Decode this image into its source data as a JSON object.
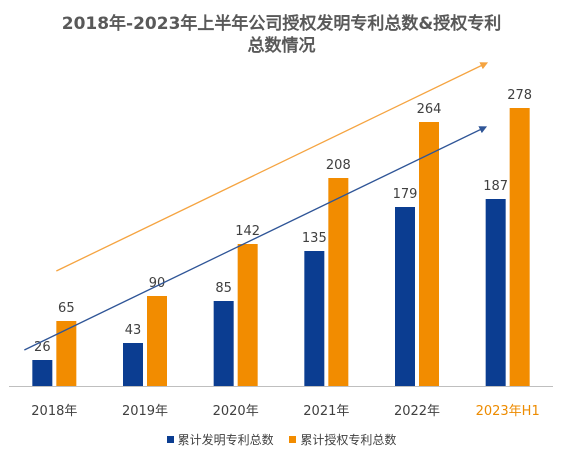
{
  "chart_data": {
    "type": "bar",
    "title_line1": "2018年-2023年上半年公司授权发明专利总数&授权专利",
    "title_line2": "总数情况",
    "categories": [
      "2018年",
      "2019年",
      "2020年",
      "2021年",
      "2022年",
      "2023年H1"
    ],
    "highlight_category": "2023年H1",
    "highlight_color": "#ED8B00",
    "series": [
      {
        "name": "累计发明专利总数",
        "values": [
          26,
          43,
          85,
          135,
          179,
          187
        ],
        "color": "#0B3D91"
      },
      {
        "name": "累计授权专利总数",
        "values": [
          65,
          90,
          142,
          208,
          264,
          278
        ],
        "color": "#F28C00"
      }
    ],
    "trend_arrows": [
      {
        "series": "累计授权专利总数",
        "color": "#F5A441"
      },
      {
        "series": "累计发明专利总数",
        "color": "#2F5597"
      }
    ],
    "ylim": [
      0,
      300
    ],
    "grid": false,
    "legend": "bottom"
  }
}
